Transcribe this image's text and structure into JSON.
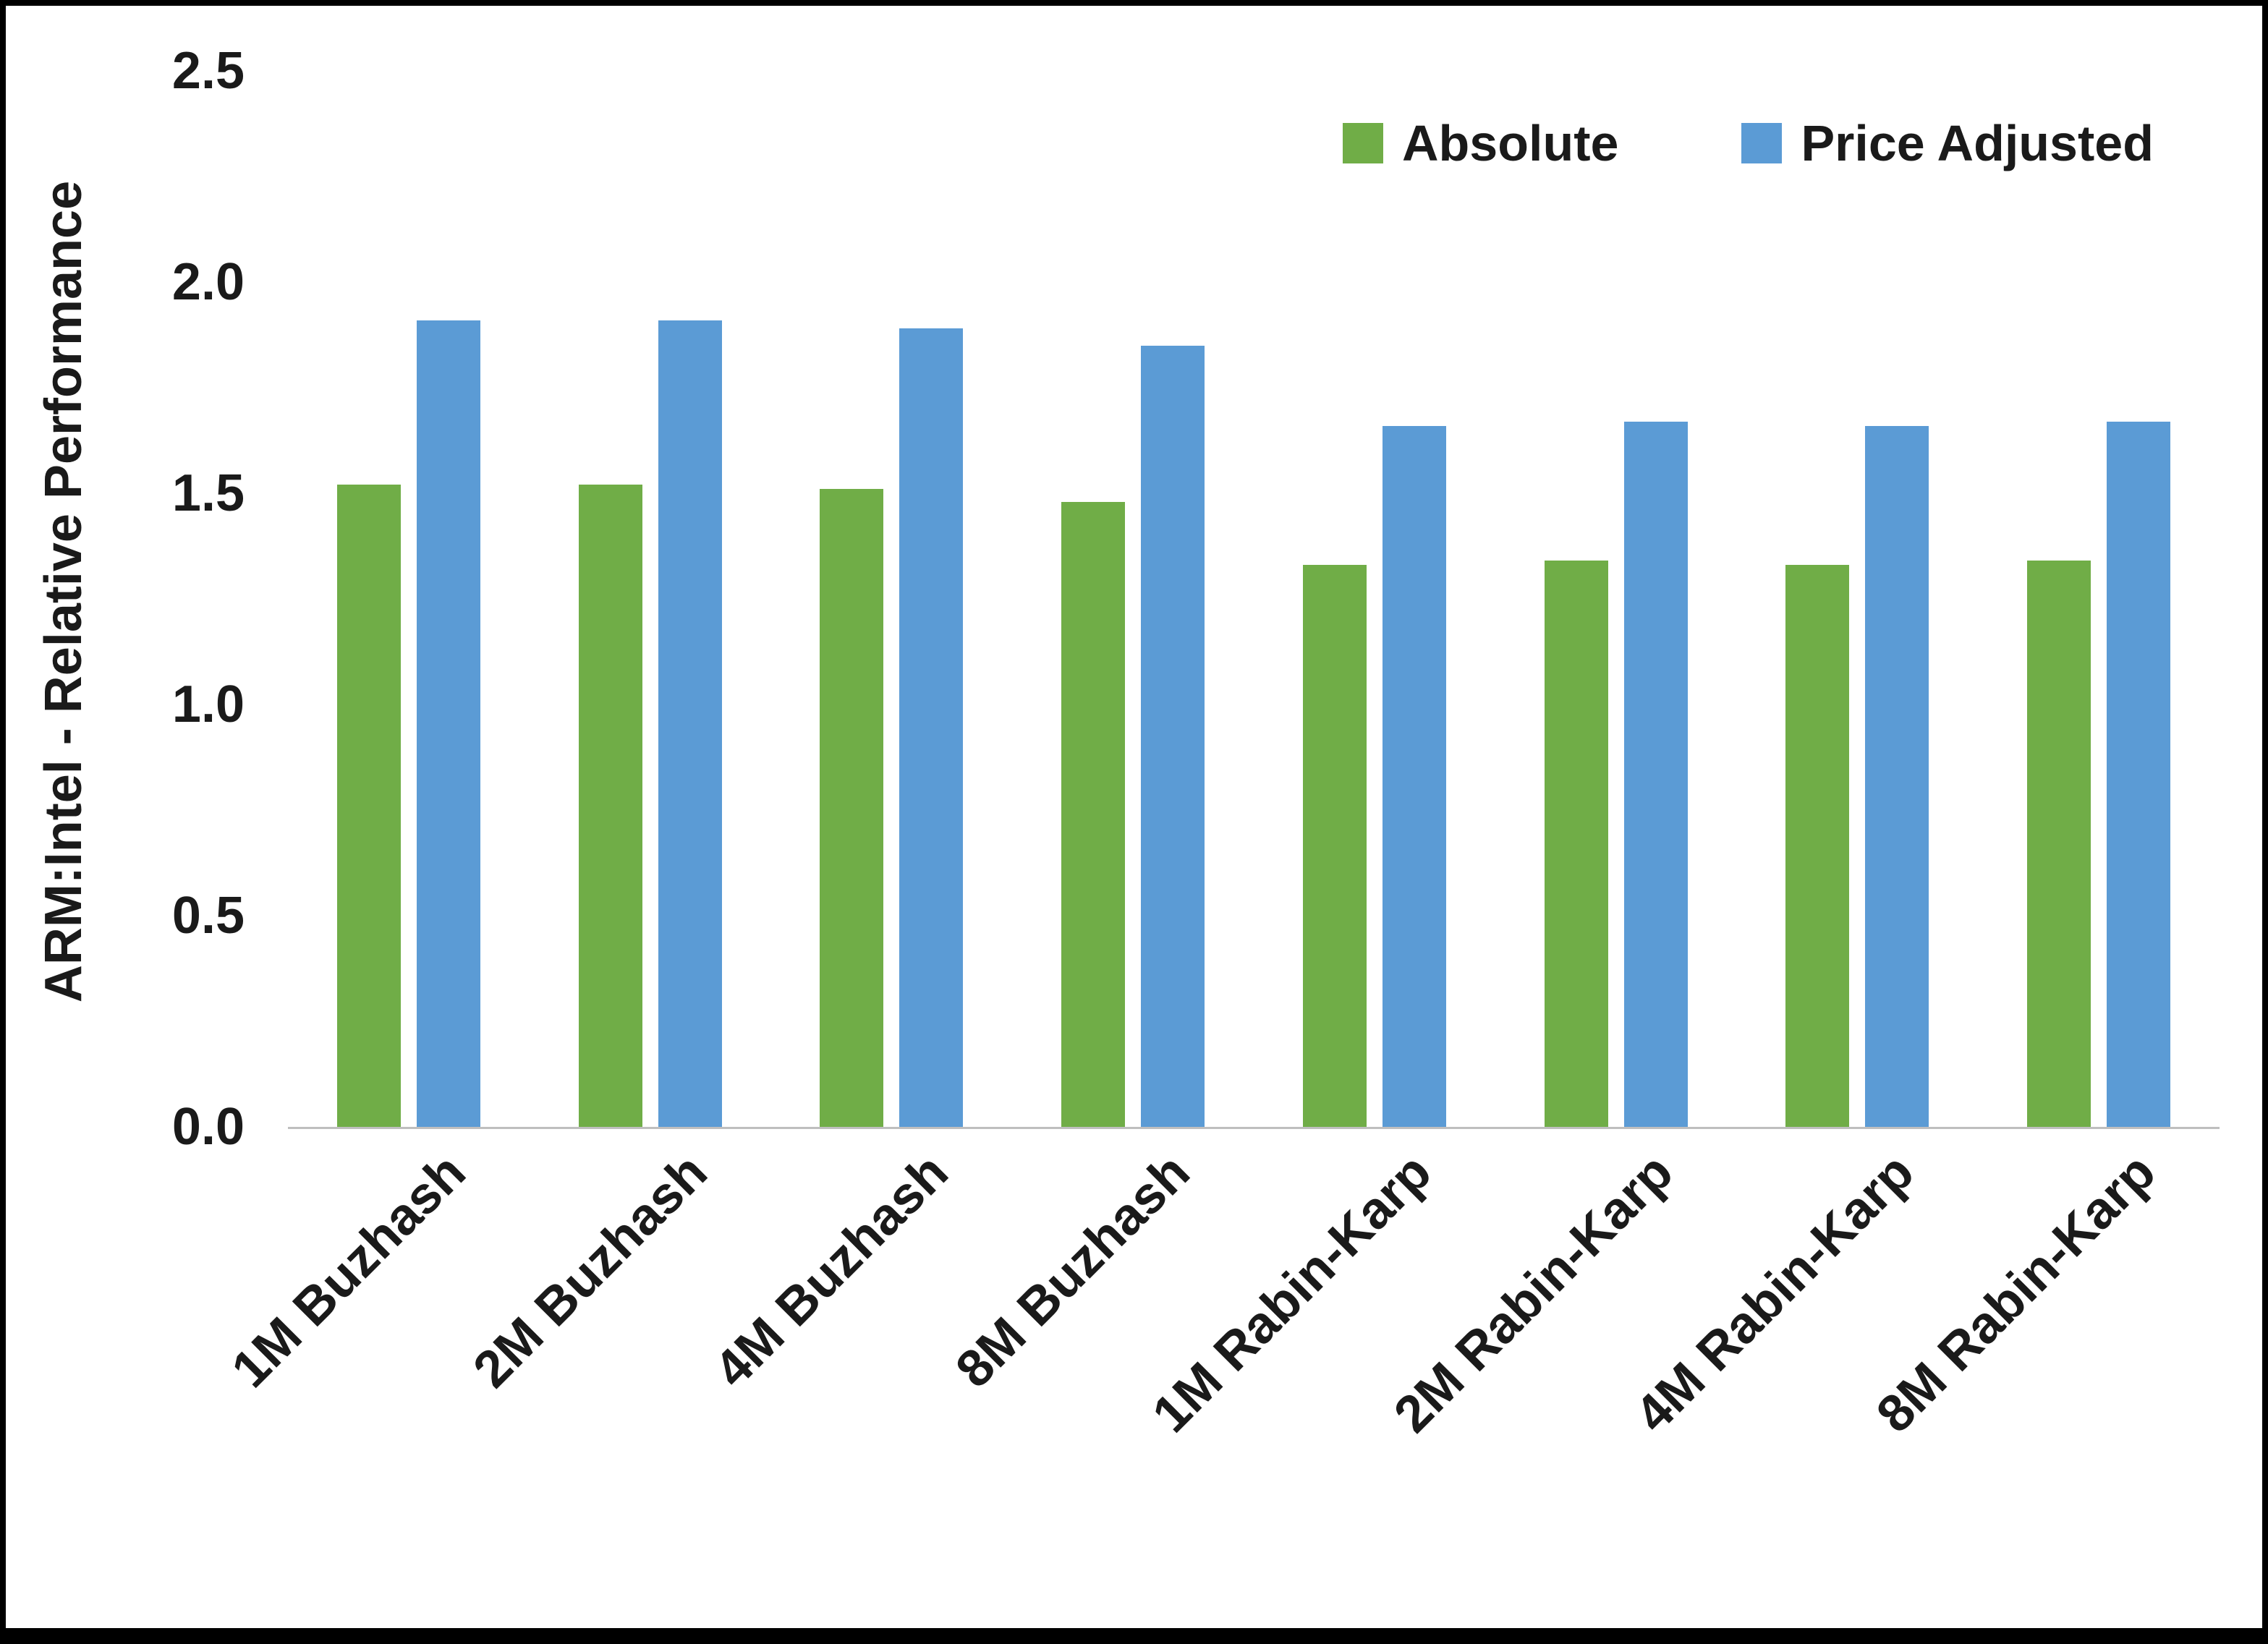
{
  "chart_data": {
    "type": "bar",
    "title": "",
    "xlabel": "",
    "ylabel": "ARM:Intel - Relative Performance",
    "ylim": [
      0,
      2.5
    ],
    "yticks": [
      0.0,
      0.5,
      1.0,
      1.5,
      2.0,
      2.5
    ],
    "grid": false,
    "legend_position": "top-right",
    "categories": [
      "1M Buzhash",
      "2M Buzhash",
      "4M Buzhash",
      "8M Buzhash",
      "1M Rabin-Karp",
      "2M Rabin-Karp",
      "4M Rabin-Karp",
      "8M Rabin-Karp"
    ],
    "series": [
      {
        "name": "Absolute",
        "color": "#70AD47",
        "values": [
          1.52,
          1.52,
          1.51,
          1.48,
          1.33,
          1.34,
          1.33,
          1.34
        ]
      },
      {
        "name": "Price Adjusted",
        "color": "#5B9BD5",
        "values": [
          1.91,
          1.91,
          1.89,
          1.85,
          1.66,
          1.67,
          1.66,
          1.67
        ]
      }
    ],
    "axis_color": "#bfbfbf",
    "text_color": "#1a1a1a"
  }
}
